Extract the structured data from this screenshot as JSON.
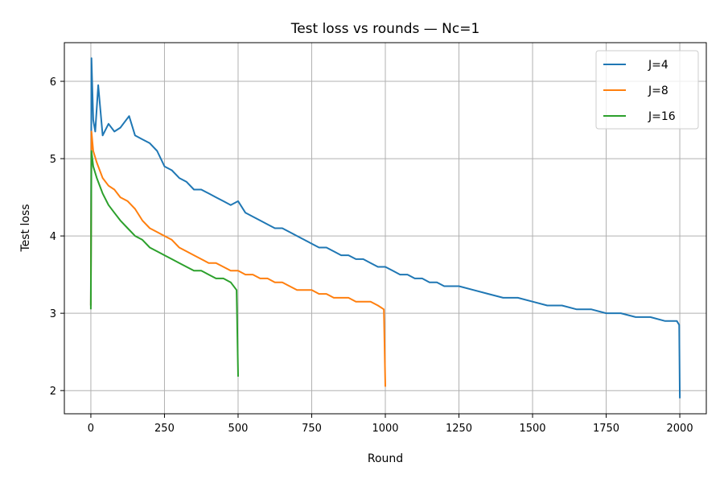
{
  "chart_data": {
    "type": "line",
    "title": "Test loss vs rounds — Nc=1",
    "xlabel": "Round",
    "ylabel": "Test loss",
    "xlim": [
      -90,
      2090
    ],
    "ylim": [
      1.7,
      6.5
    ],
    "xticks": [
      0,
      250,
      500,
      750,
      1000,
      1250,
      1500,
      1750,
      2000
    ],
    "yticks": [
      2,
      3,
      4,
      5,
      6
    ],
    "grid": true,
    "legend_position": "top-right",
    "series": [
      {
        "name": "J=4",
        "color": "#1f77b4",
        "points": [
          [
            0,
            3.1
          ],
          [
            2,
            6.3
          ],
          [
            8,
            5.5
          ],
          [
            15,
            5.35
          ],
          [
            25,
            5.95
          ],
          [
            40,
            5.3
          ],
          [
            60,
            5.45
          ],
          [
            80,
            5.35
          ],
          [
            100,
            5.4
          ],
          [
            130,
            5.55
          ],
          [
            150,
            5.3
          ],
          [
            175,
            5.25
          ],
          [
            200,
            5.2
          ],
          [
            225,
            5.1
          ],
          [
            250,
            4.9
          ],
          [
            275,
            4.85
          ],
          [
            300,
            4.75
          ],
          [
            325,
            4.7
          ],
          [
            350,
            4.6
          ],
          [
            375,
            4.6
          ],
          [
            400,
            4.55
          ],
          [
            425,
            4.5
          ],
          [
            450,
            4.45
          ],
          [
            475,
            4.4
          ],
          [
            500,
            4.45
          ],
          [
            525,
            4.3
          ],
          [
            550,
            4.25
          ],
          [
            575,
            4.2
          ],
          [
            600,
            4.15
          ],
          [
            625,
            4.1
          ],
          [
            650,
            4.1
          ],
          [
            675,
            4.05
          ],
          [
            700,
            4.0
          ],
          [
            725,
            3.95
          ],
          [
            750,
            3.9
          ],
          [
            775,
            3.85
          ],
          [
            800,
            3.85
          ],
          [
            825,
            3.8
          ],
          [
            850,
            3.75
          ],
          [
            875,
            3.75
          ],
          [
            900,
            3.7
          ],
          [
            925,
            3.7
          ],
          [
            950,
            3.65
          ],
          [
            975,
            3.6
          ],
          [
            1000,
            3.6
          ],
          [
            1025,
            3.55
          ],
          [
            1050,
            3.5
          ],
          [
            1075,
            3.5
          ],
          [
            1100,
            3.45
          ],
          [
            1125,
            3.45
          ],
          [
            1150,
            3.4
          ],
          [
            1175,
            3.4
          ],
          [
            1200,
            3.35
          ],
          [
            1250,
            3.35
          ],
          [
            1300,
            3.3
          ],
          [
            1350,
            3.25
          ],
          [
            1400,
            3.2
          ],
          [
            1450,
            3.2
          ],
          [
            1500,
            3.15
          ],
          [
            1550,
            3.1
          ],
          [
            1600,
            3.1
          ],
          [
            1650,
            3.05
          ],
          [
            1700,
            3.05
          ],
          [
            1750,
            3.0
          ],
          [
            1800,
            3.0
          ],
          [
            1850,
            2.95
          ],
          [
            1900,
            2.95
          ],
          [
            1950,
            2.9
          ],
          [
            1990,
            2.9
          ],
          [
            1998,
            2.85
          ],
          [
            2000,
            1.9
          ]
        ]
      },
      {
        "name": "J=8",
        "color": "#ff7f0e",
        "points": [
          [
            0,
            3.1
          ],
          [
            2,
            5.35
          ],
          [
            8,
            5.1
          ],
          [
            20,
            4.95
          ],
          [
            40,
            4.75
          ],
          [
            60,
            4.65
          ],
          [
            80,
            4.6
          ],
          [
            100,
            4.5
          ],
          [
            125,
            4.45
          ],
          [
            150,
            4.35
          ],
          [
            175,
            4.2
          ],
          [
            200,
            4.1
          ],
          [
            225,
            4.05
          ],
          [
            250,
            4.0
          ],
          [
            275,
            3.95
          ],
          [
            300,
            3.85
          ],
          [
            325,
            3.8
          ],
          [
            350,
            3.75
          ],
          [
            375,
            3.7
          ],
          [
            400,
            3.65
          ],
          [
            425,
            3.65
          ],
          [
            450,
            3.6
          ],
          [
            475,
            3.55
          ],
          [
            500,
            3.55
          ],
          [
            525,
            3.5
          ],
          [
            550,
            3.5
          ],
          [
            575,
            3.45
          ],
          [
            600,
            3.45
          ],
          [
            625,
            3.4
          ],
          [
            650,
            3.4
          ],
          [
            675,
            3.35
          ],
          [
            700,
            3.3
          ],
          [
            725,
            3.3
          ],
          [
            750,
            3.3
          ],
          [
            775,
            3.25
          ],
          [
            800,
            3.25
          ],
          [
            825,
            3.2
          ],
          [
            850,
            3.2
          ],
          [
            875,
            3.2
          ],
          [
            900,
            3.15
          ],
          [
            925,
            3.15
          ],
          [
            950,
            3.15
          ],
          [
            975,
            3.1
          ],
          [
            995,
            3.05
          ],
          [
            1000,
            2.05
          ]
        ]
      },
      {
        "name": "J=16",
        "color": "#2ca02c",
        "points": [
          [
            0,
            3.05
          ],
          [
            2,
            5.1
          ],
          [
            8,
            4.9
          ],
          [
            20,
            4.75
          ],
          [
            40,
            4.55
          ],
          [
            60,
            4.4
          ],
          [
            80,
            4.3
          ],
          [
            100,
            4.2
          ],
          [
            125,
            4.1
          ],
          [
            150,
            4.0
          ],
          [
            175,
            3.95
          ],
          [
            200,
            3.85
          ],
          [
            225,
            3.8
          ],
          [
            250,
            3.75
          ],
          [
            275,
            3.7
          ],
          [
            300,
            3.65
          ],
          [
            325,
            3.6
          ],
          [
            350,
            3.55
          ],
          [
            375,
            3.55
          ],
          [
            400,
            3.5
          ],
          [
            425,
            3.45
          ],
          [
            450,
            3.45
          ],
          [
            475,
            3.4
          ],
          [
            495,
            3.3
          ],
          [
            500,
            2.18
          ]
        ]
      }
    ]
  }
}
